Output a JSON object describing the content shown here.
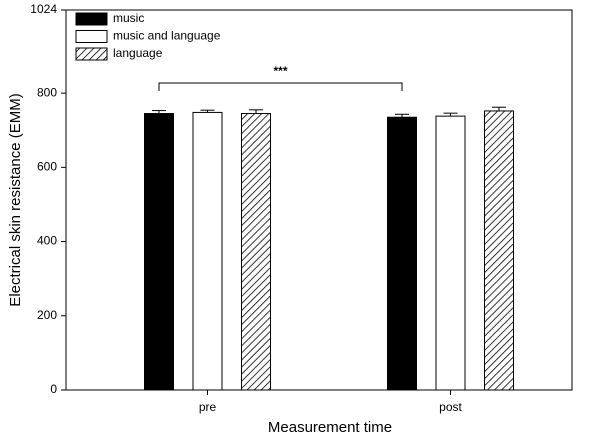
{
  "chart_data": {
    "type": "bar",
    "x_label": "Measurement time",
    "y_label": "Electrical skin resistance (EMM)",
    "annotation": "***",
    "categories": [
      "pre",
      "post"
    ],
    "series": [
      {
        "name": "music",
        "color": "#000000",
        "values": [
          745,
          735
        ],
        "errors": [
          8,
          8
        ]
      },
      {
        "name": "music and language",
        "color": "#ffffff",
        "values": [
          748,
          738
        ],
        "errors": [
          6,
          8
        ]
      },
      {
        "name": "language",
        "color": "#ffffff",
        "hatch": true,
        "values": [
          745,
          752
        ],
        "errors": [
          10,
          10
        ]
      }
    ],
    "ylim": [
      0,
      1024
    ],
    "yticks": [
      0,
      200,
      400,
      600,
      800,
      1024
    ],
    "legend": "upper left",
    "grid": false
  }
}
